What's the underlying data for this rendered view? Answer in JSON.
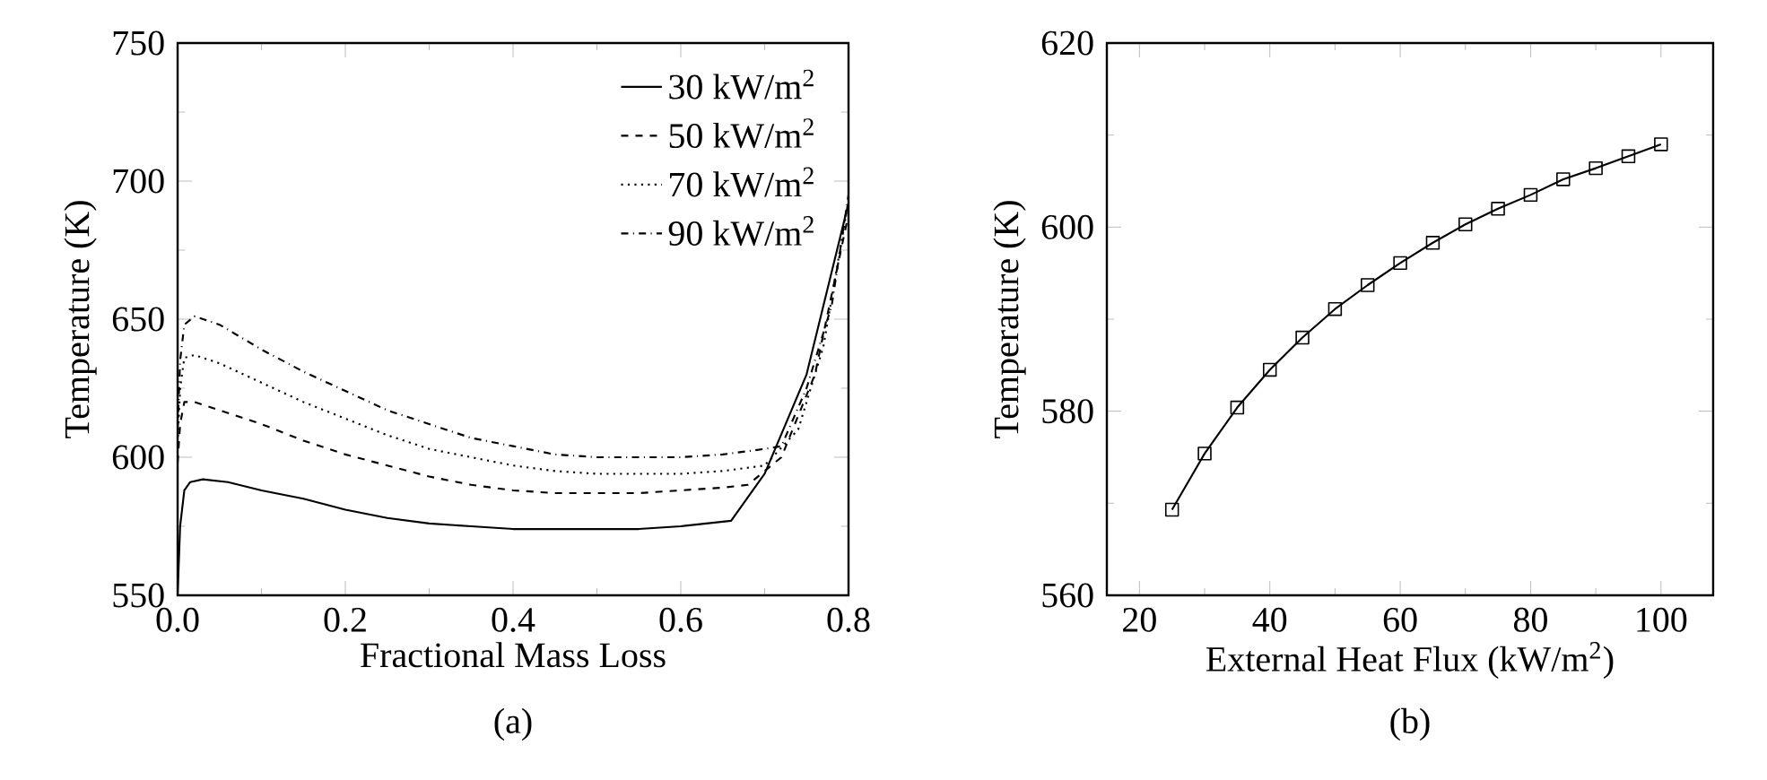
{
  "chart_data": [
    {
      "type": "line",
      "title": "(a)",
      "xlabel": "Fractional Mass Loss",
      "ylabel": "Temperature (K)",
      "xlim": [
        0,
        0.8
      ],
      "ylim": [
        550,
        750
      ],
      "xticks": [
        {
          "value": 0,
          "label": "0.0"
        },
        0.2,
        0.4,
        0.6,
        0.8
      ],
      "yticks": [
        550,
        600,
        650,
        700,
        750
      ],
      "legend": "top right",
      "grid": false,
      "series": [
        {
          "name": "30 kW/m$^{2}$",
          "color": "#000000",
          "line_style": "solid",
          "x": [
            0,
            0.003,
            0.008,
            0.015,
            0.03,
            0.06,
            0.1,
            0.15,
            0.2,
            0.25,
            0.3,
            0.35,
            0.4,
            0.45,
            0.5,
            0.55,
            0.6,
            0.66,
            0.7,
            0.75,
            0.8
          ],
          "values": [
            550,
            575,
            588,
            591,
            592,
            591,
            588,
            585,
            581,
            578,
            576,
            575,
            574,
            574,
            574,
            574,
            575,
            577,
            594,
            630,
            692
          ]
        },
        {
          "name": "50 kW/m$^{2}$",
          "color": "#000000",
          "line_style": "dashed",
          "x": [
            0,
            0.003,
            0.008,
            0.02,
            0.05,
            0.1,
            0.15,
            0.2,
            0.25,
            0.3,
            0.35,
            0.4,
            0.45,
            0.5,
            0.55,
            0.6,
            0.65,
            0.68,
            0.72,
            0.76,
            0.8
          ],
          "values": [
            598,
            612,
            620,
            620,
            617,
            612,
            606,
            601,
            597,
            593,
            590,
            588,
            587,
            587,
            587,
            588,
            589,
            590,
            600,
            630,
            688
          ]
        },
        {
          "name": "70 kW/m$^{2}$",
          "color": "#000000",
          "line_style": "dotted",
          "x": [
            0,
            0.003,
            0.008,
            0.02,
            0.05,
            0.1,
            0.15,
            0.2,
            0.25,
            0.3,
            0.35,
            0.4,
            0.45,
            0.5,
            0.55,
            0.6,
            0.65,
            0.7,
            0.74,
            0.77,
            0.8
          ],
          "values": [
            605,
            625,
            636,
            637,
            634,
            627,
            620,
            614,
            608,
            603,
            600,
            597,
            595,
            594,
            594,
            594,
            595,
            597,
            610,
            640,
            693
          ]
        },
        {
          "name": "90 kW/m$^{2}$",
          "color": "#000000",
          "line_style": "dashdotted",
          "x": [
            0,
            0.003,
            0.008,
            0.02,
            0.05,
            0.1,
            0.15,
            0.2,
            0.25,
            0.3,
            0.35,
            0.4,
            0.45,
            0.5,
            0.55,
            0.6,
            0.65,
            0.7,
            0.72,
            0.75,
            0.78,
            0.8
          ],
          "values": [
            610,
            635,
            648,
            651,
            648,
            639,
            631,
            624,
            617,
            612,
            607,
            604,
            601,
            600,
            600,
            600,
            601,
            603,
            604,
            625,
            655,
            695
          ]
        }
      ]
    },
    {
      "type": "line",
      "title": "(b)",
      "xlabel": "External Heat Flux (kW/m$^{2}$)",
      "ylabel": "Temperature (K)",
      "xlim": [
        15,
        108
      ],
      "ylim": [
        560,
        620
      ],
      "xticks": [
        20,
        40,
        60,
        80,
        100
      ],
      "yticks": [
        560,
        580,
        600,
        620
      ],
      "marker": "square",
      "grid": false,
      "series": [
        {
          "color": "#000000",
          "line_style": "solid",
          "x": [
            25,
            30,
            35,
            40,
            45,
            50,
            55,
            60,
            65,
            70,
            75,
            80,
            85,
            90,
            95,
            100
          ],
          "values": [
            569.3,
            575.4,
            580.4,
            584.5,
            588.0,
            591.1,
            593.7,
            596.1,
            598.3,
            600.3,
            602.0,
            603.5,
            605.2,
            606.4,
            607.7,
            609.0
          ]
        }
      ]
    }
  ]
}
